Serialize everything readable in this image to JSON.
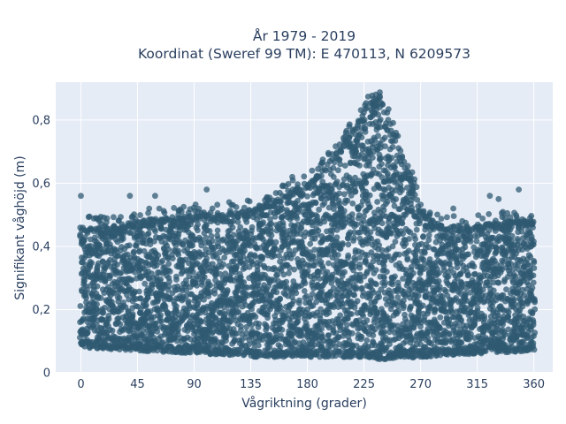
{
  "chart_data": {
    "type": "scatter",
    "title_lines": [
      "År 1979 - 2019",
      "Koordinat (Sweref 99 TM): E 470113, N 6209573"
    ],
    "xlabel": "Vågriktning (grader)",
    "ylabel": "Signifikant våghöjd (m)",
    "xlim": [
      -20,
      375
    ],
    "ylim": [
      0,
      0.92
    ],
    "x_ticks": [
      0,
      45,
      90,
      135,
      180,
      225,
      270,
      315,
      360
    ],
    "y_ticks": [
      0,
      0.2,
      0.4,
      0.6,
      0.8
    ],
    "y_tick_labels": [
      "0",
      "0,2",
      "0,4",
      "0,6",
      "0,8"
    ],
    "grid": true,
    "legend": "none",
    "marker_color": "#2f5a72",
    "plot_bg": "#e5ecf6",
    "grid_color": "#ffffff",
    "series": [
      {
        "envelope_upper": [
          [
            0,
            0.46
          ],
          [
            20,
            0.46
          ],
          [
            45,
            0.48
          ],
          [
            60,
            0.49
          ],
          [
            90,
            0.5
          ],
          [
            110,
            0.5
          ],
          [
            135,
            0.52
          ],
          [
            150,
            0.54
          ],
          [
            170,
            0.58
          ],
          [
            185,
            0.62
          ],
          [
            200,
            0.68
          ],
          [
            215,
            0.76
          ],
          [
            225,
            0.83
          ],
          [
            232,
            0.88
          ],
          [
            240,
            0.86
          ],
          [
            250,
            0.74
          ],
          [
            260,
            0.64
          ],
          [
            270,
            0.52
          ],
          [
            280,
            0.48
          ],
          [
            300,
            0.46
          ],
          [
            320,
            0.47
          ],
          [
            340,
            0.48
          ],
          [
            360,
            0.49
          ]
        ],
        "envelope_lower": [
          [
            0,
            0.08
          ],
          [
            45,
            0.07
          ],
          [
            90,
            0.06
          ],
          [
            135,
            0.05
          ],
          [
            180,
            0.05
          ],
          [
            225,
            0.05
          ],
          [
            240,
            0.04
          ],
          [
            270,
            0.05
          ],
          [
            315,
            0.06
          ],
          [
            360,
            0.07
          ]
        ],
        "outliers": [
          [
            0,
            0.56
          ],
          [
            39,
            0.56
          ],
          [
            59,
            0.56
          ],
          [
            100,
            0.58
          ],
          [
            119,
            0.47
          ],
          [
            168,
            0.62
          ],
          [
            255,
            0.66
          ],
          [
            262,
            0.57
          ],
          [
            296,
            0.52
          ],
          [
            325,
            0.56
          ],
          [
            332,
            0.55
          ],
          [
            348,
            0.58
          ],
          [
            357,
            0.49
          ],
          [
            359,
            0.47
          ],
          [
            12,
            0.49
          ],
          [
            50,
            0.48
          ],
          [
            80,
            0.51
          ]
        ]
      }
    ]
  }
}
